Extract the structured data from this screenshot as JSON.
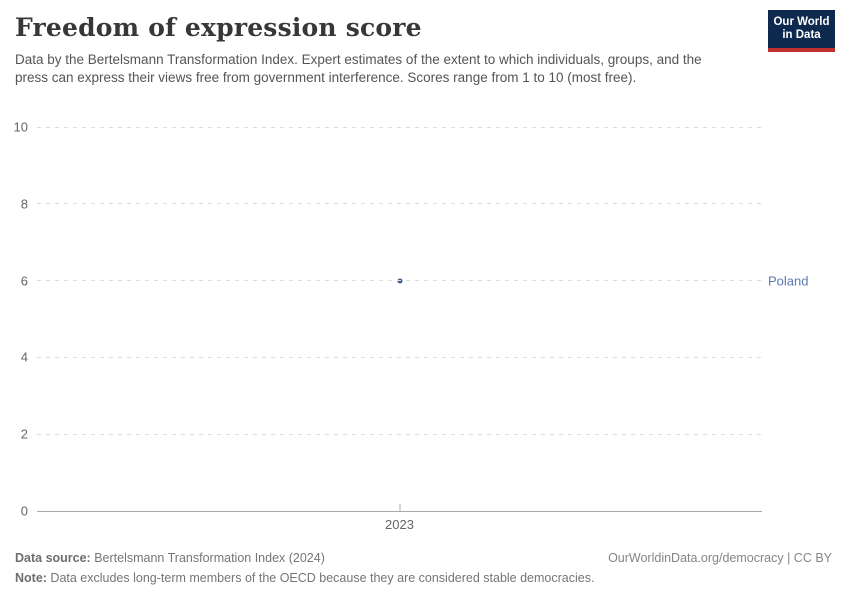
{
  "header": {
    "title": "Freedom of expression score",
    "subtitle": "Data by the Bertelsmann Transformation Index. Expert estimates of the extent to which individuals, groups, and the press can express their views free from government interference. Scores range from 1 to 10 (most free).",
    "logo": {
      "line1": "Our World",
      "line2": "in Data",
      "bg_color": "#0d2a4e",
      "stripe_color": "#c0302e"
    }
  },
  "chart_data": {
    "type": "scatter",
    "title": "Freedom of expression score",
    "x": [
      2023
    ],
    "series": [
      {
        "name": "Poland",
        "values": [
          6
        ],
        "color": "#3d5c8f"
      }
    ],
    "xlabel": "",
    "ylabel": "",
    "ylim": [
      0,
      10
    ],
    "yticks": [
      0,
      2,
      4,
      6,
      8,
      10
    ],
    "xticks": [
      2023
    ],
    "grid": "horizontal-dashed",
    "legend_position": "right-entity-label",
    "entity_label": "Poland",
    "entity_label_color": "#5b7ab0",
    "gridline_color": "#dcdcdc",
    "axis_color": "#a8a8a8",
    "tick_label_color": "#666666"
  },
  "footer": {
    "data_source_label": "Data source:",
    "data_source_value": " Bertelsmann Transformation Index (2024)",
    "attribution": "OurWorldinData.org/democracy | CC BY",
    "note_label": "Note:",
    "note_value": " Data excludes long-term members of the OECD because they are considered stable democracies."
  }
}
